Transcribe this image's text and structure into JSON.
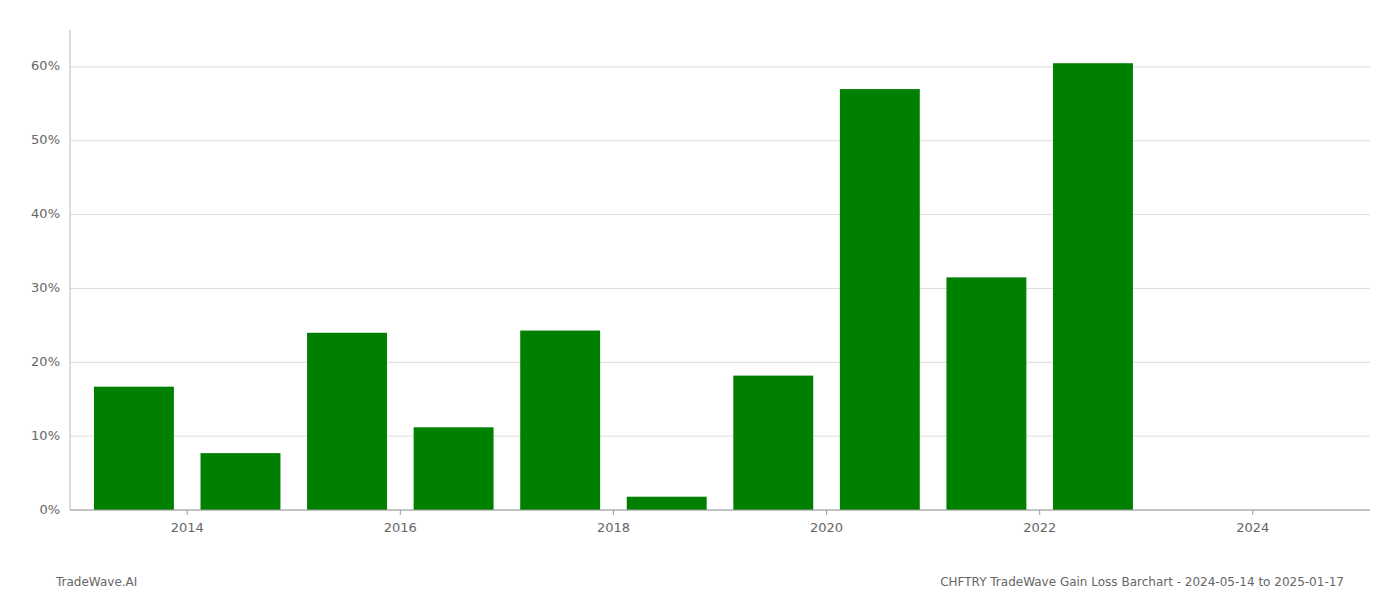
{
  "chart_data": {
    "type": "bar",
    "x": [
      2013,
      2014,
      2015,
      2016,
      2017,
      2018,
      2019,
      2020,
      2021,
      2022,
      2023
    ],
    "values": [
      0.167,
      0.077,
      0.24,
      0.112,
      0.243,
      0.018,
      0.182,
      0.57,
      0.315,
      0.605,
      0.0
    ],
    "color": "#008000",
    "xlim": [
      2012.4,
      2024.6
    ],
    "xticks": [
      {
        "value": 2013.5,
        "label": "2014"
      },
      {
        "value": 2015.5,
        "label": "2016"
      },
      {
        "value": 2017.5,
        "label": "2018"
      },
      {
        "value": 2019.5,
        "label": "2020"
      },
      {
        "value": 2021.5,
        "label": "2022"
      },
      {
        "value": 2023.5,
        "label": "2024"
      }
    ],
    "ylim": [
      0,
      0.65
    ],
    "yticks": [
      {
        "value": 0.0,
        "label": "0%"
      },
      {
        "value": 0.1,
        "label": "10%"
      },
      {
        "value": 0.2,
        "label": "20%"
      },
      {
        "value": 0.3,
        "label": "30%"
      },
      {
        "value": 0.4,
        "label": "40%"
      },
      {
        "value": 0.5,
        "label": "50%"
      },
      {
        "value": 0.6,
        "label": "60%"
      }
    ],
    "grid": true,
    "annotations": [
      "TradeWave.AI",
      "CHFTRY TradeWave Gain Loss Barchart - 2024-05-14 to 2025-01-17"
    ]
  }
}
